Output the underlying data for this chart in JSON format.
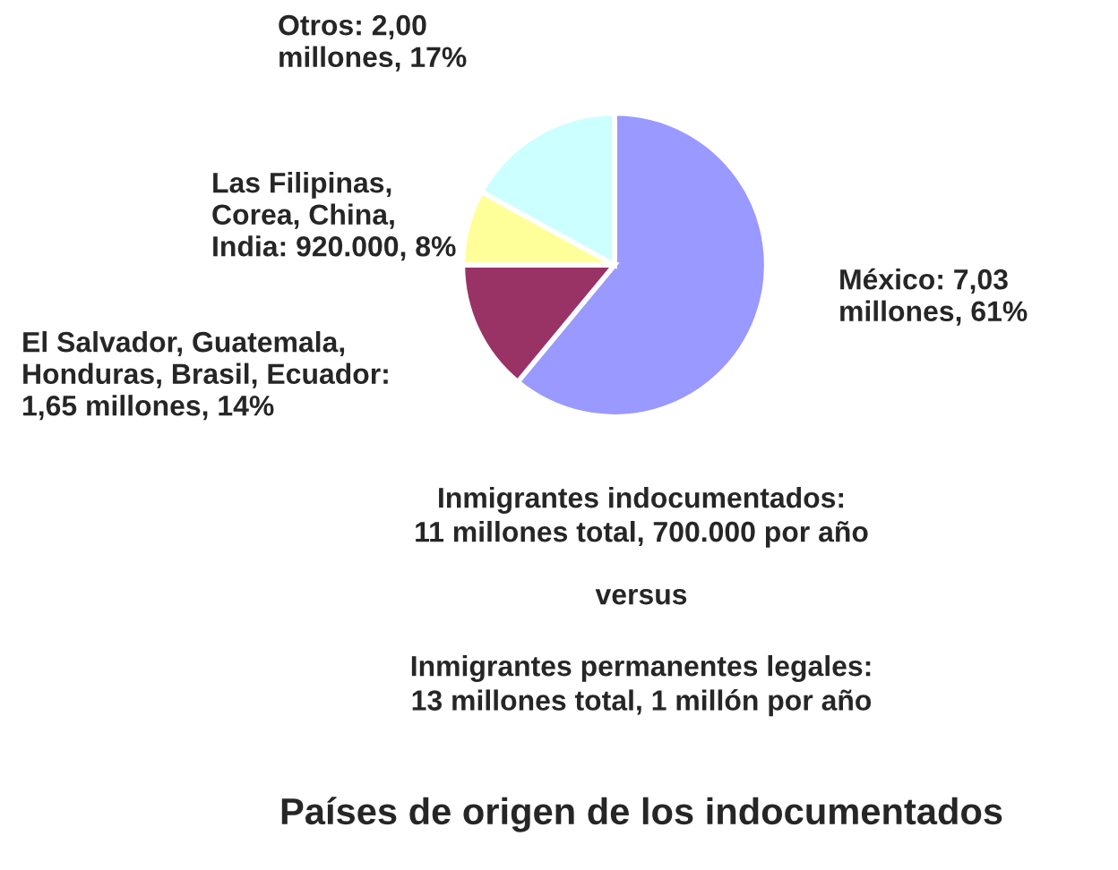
{
  "chart_data": {
    "type": "pie",
    "title": "Países de origen de los indocumentados",
    "categories": [
      "México: 7,03\nmillones, 61%",
      "El Salvador, Guatemala,\nHonduras, Brasil, Ecuador:\n1,65 millones, 14%",
      "Las Filipinas,\nCorea, China,\nIndia: 920.000, 8%",
      "Otros: 2,00\nmillones, 17%"
    ],
    "values": [
      61,
      14,
      8,
      17
    ],
    "colors": [
      "#9999ff",
      "#993366",
      "#ffff99",
      "#ccffff"
    ],
    "annotations": [
      "Inmigrantes indocumentados:\n11 millones total, 700.000 por año",
      "versus",
      "Inmigrantes permanentes legales:\n13 millones total, 1 millón por año"
    ]
  }
}
